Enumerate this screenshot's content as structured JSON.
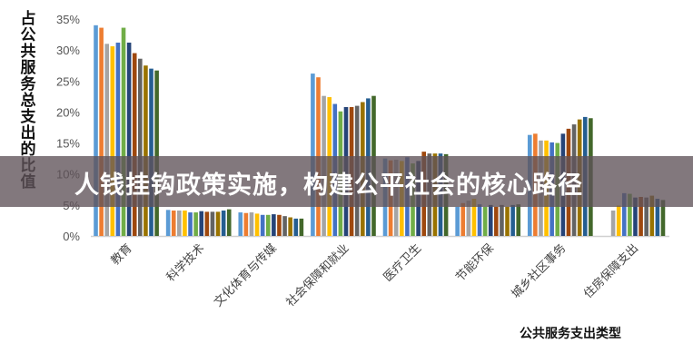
{
  "chart_data": {
    "type": "bar",
    "ylabel": "占公共服务总支出的比值",
    "xlabel": "公共服务支出类型",
    "ylim": [
      0,
      35
    ],
    "yticks": [
      "0%",
      "5%",
      "10%",
      "15%",
      "20%",
      "25%",
      "30%",
      "35%"
    ],
    "grid": false,
    "categories": [
      "教育",
      "科学技术",
      "文化体育与传媒",
      "社会保障和就业",
      "医疗卫生",
      "节能环保",
      "城乡社区事务",
      "住房保障支出"
    ],
    "colors": [
      "#5b9bd5",
      "#ed7d31",
      "#a5a5a5",
      "#ffc000",
      "#4472c4",
      "#70ad47",
      "#264478",
      "#9e480e",
      "#636363",
      "#997300",
      "#255e91",
      "#43682b"
    ],
    "series": [
      {
        "values": [
          34.0,
          4.2,
          3.8,
          26.2,
          12.5,
          4.7,
          16.3,
          null
        ]
      },
      {
        "values": [
          33.6,
          4.1,
          3.7,
          25.6,
          12.2,
          5.3,
          16.5,
          null
        ]
      },
      {
        "values": [
          31.0,
          4.1,
          3.8,
          22.6,
          12.3,
          5.7,
          15.4,
          4.1
        ]
      },
      {
        "values": [
          30.6,
          4.1,
          3.6,
          22.4,
          12.1,
          6.0,
          15.4,
          4.9
        ]
      },
      {
        "values": [
          31.2,
          3.8,
          3.4,
          21.3,
          12.7,
          5.1,
          15.1,
          6.9
        ]
      },
      {
        "values": [
          33.6,
          3.8,
          3.4,
          20.1,
          11.7,
          4.7,
          15.0,
          6.8
        ]
      },
      {
        "values": [
          31.2,
          4.0,
          3.5,
          20.8,
          12.1,
          5.0,
          16.5,
          6.2
        ]
      },
      {
        "values": [
          29.5,
          3.9,
          3.4,
          20.8,
          13.6,
          4.7,
          17.3,
          6.3
        ]
      },
      {
        "values": [
          28.6,
          3.9,
          3.2,
          21.0,
          13.3,
          5.0,
          18.0,
          6.2
        ]
      },
      {
        "values": [
          27.5,
          3.9,
          3.0,
          21.6,
          13.3,
          4.7,
          18.8,
          6.5
        ]
      },
      {
        "values": [
          27.0,
          4.1,
          2.8,
          22.2,
          13.3,
          5.0,
          19.2,
          6.0
        ]
      },
      {
        "values": [
          26.7,
          4.3,
          2.8,
          22.6,
          13.2,
          5.1,
          19.0,
          5.8
        ]
      }
    ]
  },
  "banner": {
    "text": "人钱挂钩政策实施，构建公平社会的核心路径"
  }
}
